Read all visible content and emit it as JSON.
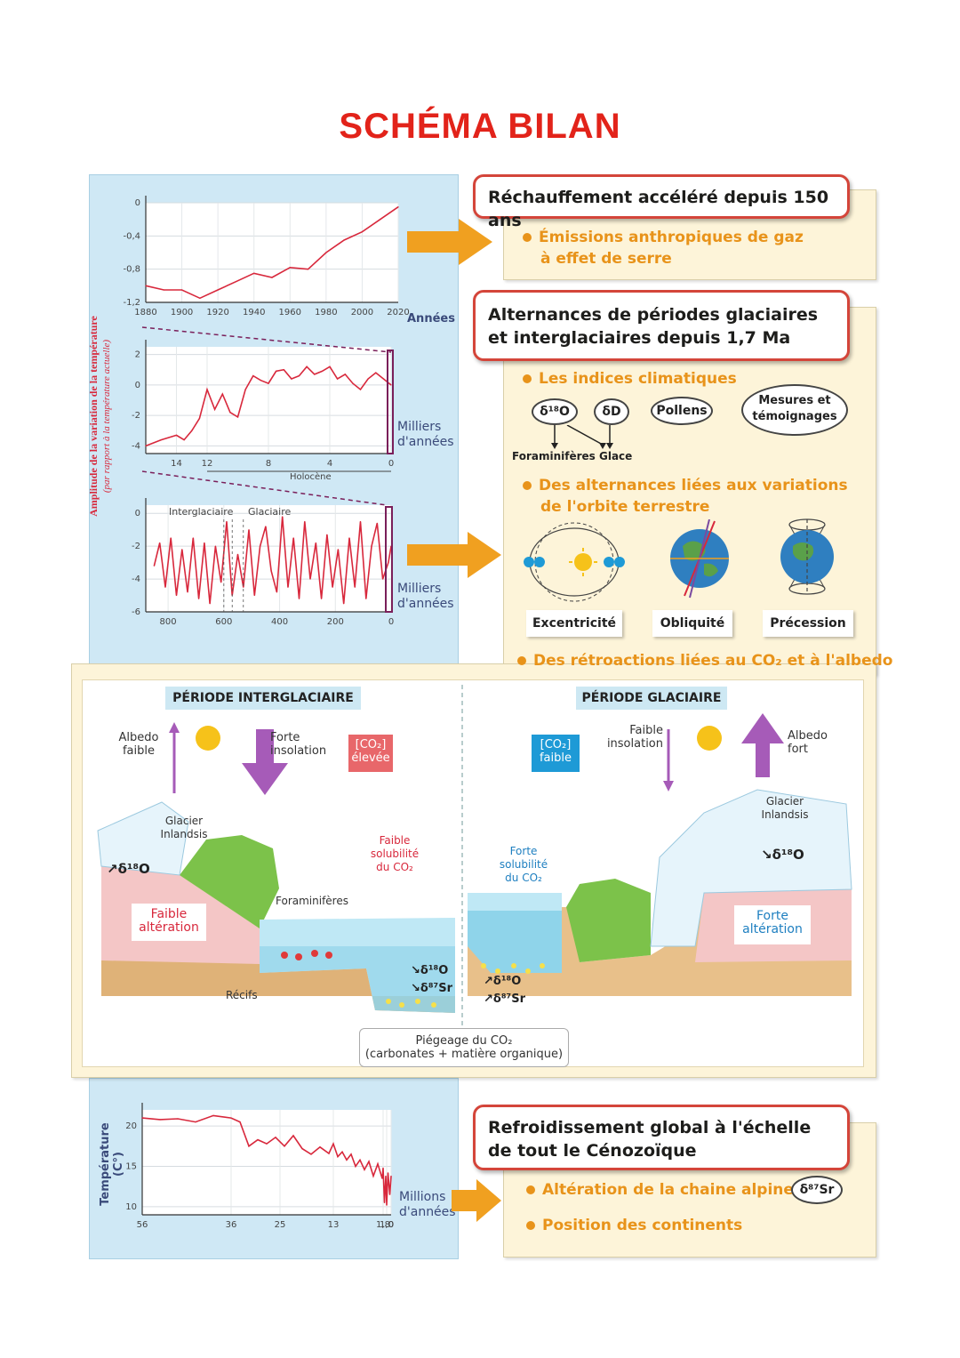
{
  "title": "SCHÉMA BILAN",
  "charts": {
    "y_axis_title": "Amplitude de la variation de la température",
    "y_axis_subtitle": "(par rapport à la température actuelle)",
    "chart1_unit": "Années",
    "chart2_unit_line1": "Milliers",
    "chart2_unit_line2": "d'années",
    "chart2_span_label": "Holocène",
    "chart3_unit_line1": "Milliers",
    "chart3_unit_line2": "d'années",
    "chart3_label_interglaciaire": "Interglaciaire",
    "chart3_label_glaciaire": "Glaciaire",
    "chart4_y_title": "Température (C°)",
    "chart4_unit_line1": "Millions",
    "chart4_unit_line2": "d'années"
  },
  "chart_data": [
    {
      "type": "line",
      "x": [
        1880,
        1890,
        1900,
        1910,
        1920,
        1930,
        1940,
        1950,
        1960,
        1970,
        1980,
        1990,
        2000,
        2010,
        2020
      ],
      "y": [
        -1.0,
        -1.05,
        -1.05,
        -1.15,
        -1.05,
        -0.95,
        -0.85,
        -0.9,
        -0.78,
        -0.8,
        -0.6,
        -0.45,
        -0.35,
        -0.2,
        -0.05
      ],
      "xticks": [
        "1880",
        "1900",
        "1920",
        "1940",
        "1960",
        "1980",
        "2000",
        "2020"
      ],
      "yticks": [
        "0",
        "-0,4",
        "-0,8",
        "-1,2"
      ],
      "xlim": [
        1880,
        2020
      ],
      "ylim": [
        -1.2,
        0
      ]
    },
    {
      "type": "line",
      "x": [
        16,
        15,
        14,
        13.5,
        13,
        12.5,
        12,
        11.5,
        11,
        10.5,
        10,
        9.5,
        9,
        8.5,
        8,
        7.5,
        7,
        6.5,
        6,
        5.5,
        5,
        4.5,
        4,
        3.5,
        3,
        2.5,
        2,
        1.5,
        1,
        0.5,
        0
      ],
      "y": [
        -4,
        -3.6,
        -3.3,
        -3.6,
        -3,
        -2.2,
        -0.3,
        -1.6,
        -0.6,
        -1.8,
        -2.1,
        -0.3,
        0.6,
        0.3,
        0.1,
        0.9,
        1,
        0.4,
        0.6,
        1.2,
        0.7,
        0.9,
        1.2,
        0.4,
        0.7,
        0.1,
        -0.3,
        0.4,
        0.8,
        0.4,
        0
      ],
      "xticks": [
        "14",
        "12",
        "8",
        "4",
        "0"
      ],
      "yticks": [
        "2",
        "0",
        "-2",
        "-4"
      ],
      "xlim": [
        16,
        0
      ],
      "ylim": [
        -4.5,
        2.5
      ]
    },
    {
      "type": "line",
      "x": [
        850,
        830,
        810,
        790,
        770,
        750,
        730,
        710,
        690,
        670,
        650,
        630,
        610,
        590,
        570,
        550,
        530,
        510,
        490,
        470,
        450,
        430,
        410,
        390,
        370,
        350,
        330,
        310,
        290,
        270,
        250,
        230,
        210,
        190,
        170,
        150,
        130,
        110,
        90,
        70,
        50,
        30,
        10,
        0
      ],
      "y": [
        -3.2,
        -1.8,
        -4.5,
        -1.5,
        -5,
        -2.2,
        -4.8,
        -1.5,
        -5.2,
        -1.8,
        -5.5,
        -2,
        -4.2,
        -0.5,
        -5,
        -2.5,
        -4.5,
        -1,
        -5,
        -2,
        -0.8,
        -3.5,
        -4.8,
        -0.2,
        -4.5,
        -1.5,
        -5.2,
        -0.5,
        -4,
        -1.8,
        -5.2,
        -1.3,
        -4.5,
        -2.2,
        -5.5,
        -1.5,
        -4.5,
        -0.5,
        -5.2,
        -2,
        -0.6,
        -4,
        -3,
        -2
      ],
      "xticks": [
        "800",
        "600",
        "400",
        "200",
        "0"
      ],
      "yticks": [
        "0",
        "-2",
        "-4",
        "-6"
      ],
      "xlim": [
        880,
        0
      ],
      "ylim": [
        -6,
        0.5
      ]
    },
    {
      "type": "line",
      "x": [
        56,
        52,
        48,
        44,
        40,
        36,
        34,
        32,
        30,
        28,
        26,
        24,
        22,
        20,
        18,
        16,
        14,
        13,
        12,
        11,
        10,
        9,
        8,
        7,
        6,
        5,
        4,
        3,
        2,
        1.8,
        1.5,
        1.2,
        1.0,
        0.7,
        0.3,
        0
      ],
      "y": [
        21,
        20.8,
        20.9,
        20.5,
        21.3,
        21,
        20.5,
        17.5,
        18.3,
        17.8,
        18.6,
        17.5,
        18.8,
        17.2,
        16.5,
        17.4,
        16.6,
        17.8,
        16.2,
        16.8,
        15.8,
        16.5,
        15,
        15.8,
        14.6,
        15.6,
        13.8,
        15.3,
        13.5,
        14.8,
        10.5,
        13.8,
        10.2,
        14.2,
        11.5,
        13.8
      ],
      "xticks": [
        "56",
        "36",
        "25",
        "13",
        "1,8",
        "1,0",
        "0"
      ],
      "yticks": [
        "20",
        "15",
        "10"
      ],
      "xlim": [
        56,
        0
      ],
      "ylim": [
        9,
        22
      ]
    }
  ],
  "rechauffement": {
    "heading": "Réchauffement accéléré depuis 150 ans",
    "bullet1": "Émissions anthropiques de gaz",
    "bullet1b": "à effet de serre"
  },
  "alternances": {
    "heading_line1": "Alternances de périodes glaciaires",
    "heading_line2": "et interglaciaires depuis 1,7 Ma",
    "bullet_indices": "Les indices climatiques",
    "oval_d18o": "δ¹⁸O",
    "oval_dd": "δD",
    "oval_pollens": "Pollens",
    "oval_mesures_1": "Mesures et",
    "oval_mesures_2": "témoignages",
    "label_foraminiferes": "Foraminifères",
    "label_glace": "Glace",
    "bullet_orbite_1": "Des alternances liées aux variations",
    "bullet_orbite_2": "de l'orbite terrestre",
    "label_excentricite": "Excentricité",
    "label_obliquite": "Obliquité",
    "label_precession": "Précession",
    "bullet_retroactions": "Des rétroactions liées au CO₂ et à l'albedo"
  },
  "diagram": {
    "interglaciaire_title": "PÉRIODE INTERGLACIAIRE",
    "glaciaire_title": "PÉRIODE GLACIAIRE",
    "ig_albedo_1": "Albedo",
    "ig_albedo_2": "faible",
    "ig_insolation_1": "Forte",
    "ig_insolation_2": "insolation",
    "ig_co2_1": "[CO₂]",
    "ig_co2_2": "élevée",
    "ig_glacier_1": "Glacier",
    "ig_glacier_2": "Inlandsis",
    "ig_d18o": "↗δ¹⁸O",
    "ig_alteration_1": "Faible",
    "ig_alteration_2": "altération",
    "ig_solubilite_1": "Faible",
    "ig_solubilite_2": "solubilité",
    "ig_solubilite_3": "du CO₂",
    "ig_foraminiferes": "Foraminifères",
    "ig_recifs": "Récifs",
    "ig_sed_d18o": "↘δ¹⁸O",
    "ig_sed_sr": "↘δ⁸⁷Sr",
    "g_co2_1": "[CO₂]",
    "g_co2_2": "faible",
    "g_insolation_1": "Faible",
    "g_insolation_2": "insolation",
    "g_albedo_1": "Albedo",
    "g_albedo_2": "fort",
    "g_glacier_1": "Glacier",
    "g_glacier_2": "Inlandsis",
    "g_d18o": "↘δ¹⁸O",
    "g_solubilite_1": "Forte",
    "g_solubilite_2": "solubilité",
    "g_solubilite_3": "du CO₂",
    "g_alteration_1": "Forte",
    "g_alteration_2": "altération",
    "g_sed_d18o": "↗δ¹⁸O",
    "g_sed_sr": "↗δ⁸⁷Sr",
    "piegeage_1": "Piégeage du CO₂",
    "piegeage_2": "(carbonates + matière organique)"
  },
  "refroidissement": {
    "heading_line1": "Refroidissement global à l'échelle",
    "heading_line2": "de tout le Cénozoïque",
    "bullet1": "Altération de la chaine alpine",
    "oval_sr": "δ⁸⁷Sr",
    "bullet2": "Position des continents"
  },
  "colors": {
    "title": "#e2231a",
    "heading_border": "#d4453a",
    "bullet": "#e8931a",
    "arrow": "#f0a020",
    "curve": "#d8283c",
    "panel_blue": "#cfe8f5",
    "panel_cream": "#fdf4d9"
  }
}
